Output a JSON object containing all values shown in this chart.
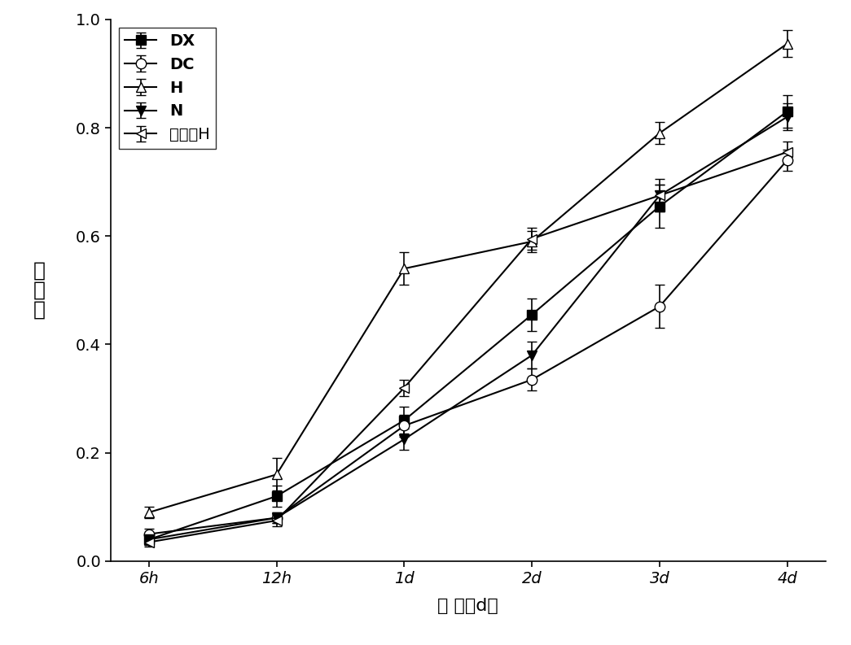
{
  "x_labels": [
    "6h",
    "12h",
    "1d",
    "2d",
    "3d",
    "4d"
  ],
  "x_positions": [
    0,
    1,
    2,
    3,
    4,
    5
  ],
  "series": {
    "DX": {
      "y": [
        0.04,
        0.12,
        0.26,
        0.455,
        0.655,
        0.83
      ],
      "yerr": [
        0.01,
        0.02,
        0.025,
        0.03,
        0.04,
        0.03
      ],
      "marker": "s",
      "fillstyle": "full",
      "color": "black",
      "label": "DX"
    },
    "DC": {
      "y": [
        0.05,
        0.08,
        0.25,
        0.335,
        0.47,
        0.74
      ],
      "yerr": [
        0.01,
        0.01,
        0.02,
        0.02,
        0.04,
        0.02
      ],
      "marker": "o",
      "fillstyle": "none",
      "color": "black",
      "label": "DC"
    },
    "H": {
      "y": [
        0.09,
        0.16,
        0.54,
        0.59,
        0.79,
        0.955
      ],
      "yerr": [
        0.01,
        0.03,
        0.03,
        0.02,
        0.02,
        0.025
      ],
      "marker": "^",
      "fillstyle": "none",
      "color": "black",
      "label": "H"
    },
    "N": {
      "y": [
        0.04,
        0.08,
        0.225,
        0.38,
        0.675,
        0.82
      ],
      "yerr": [
        0.01,
        0.01,
        0.02,
        0.025,
        0.03,
        0.025
      ],
      "marker": "v",
      "fillstyle": "full",
      "color": "black",
      "label": "N"
    },
    "crude_H": {
      "y": [
        0.035,
        0.075,
        0.32,
        0.595,
        0.675,
        0.755
      ],
      "yerr": [
        0.008,
        0.01,
        0.015,
        0.02,
        0.02,
        0.02
      ],
      "marker": "<",
      "fillstyle": "none",
      "color": "black",
      "label": "粗醂液H"
    }
  },
  "ylim": [
    0.0,
    1.0
  ],
  "yticks": [
    0.0,
    0.2,
    0.4,
    0.6,
    0.8,
    1.0
  ],
  "xlabel": "时 间（d）",
  "ylabel_chars": [
    "脱",
    "色",
    "率"
  ],
  "legend_loc": "upper left",
  "figsize": [
    10.45,
    7.93
  ],
  "dpi": 100
}
